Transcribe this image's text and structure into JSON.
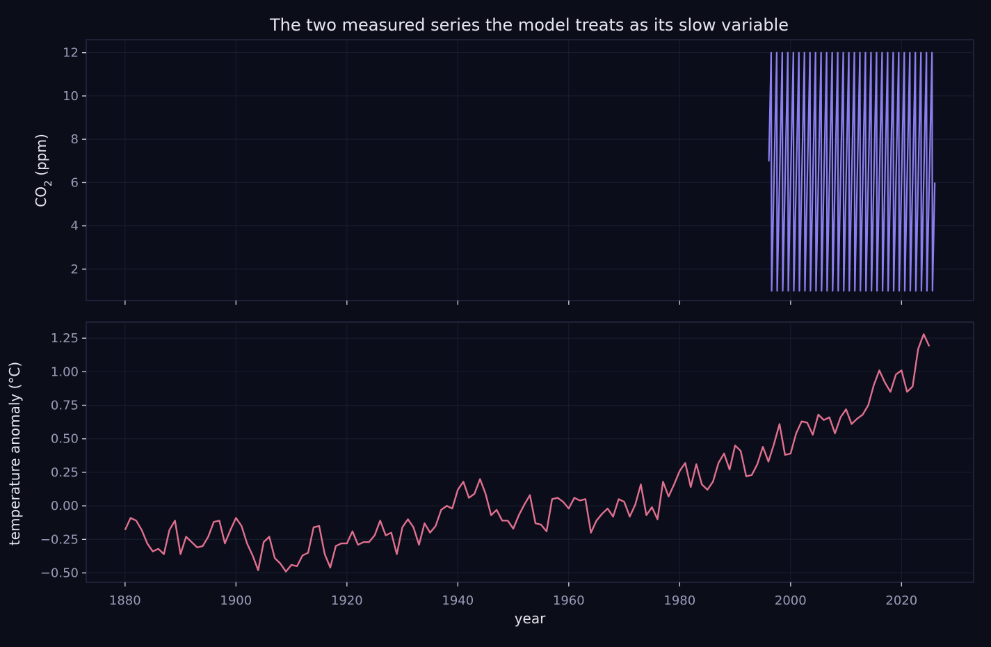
{
  "chart_data": [
    {
      "type": "line",
      "title": "The two measured series the model treats as its slow variable",
      "ylabel_main": "CO",
      "ylabel_sub": "2",
      "ylabel_rest": " (ppm)",
      "xlim": [
        1873,
        2033
      ],
      "ylim": [
        0.55,
        12.6
      ],
      "xticks": [
        1880,
        1900,
        1920,
        1940,
        1960,
        1980,
        2000,
        2020
      ],
      "yticks": [
        2,
        4,
        6,
        8,
        10,
        12
      ],
      "grid": true,
      "color": "#8b7ff0",
      "series": [
        {
          "note": "monthly values cycling 1 to 12 from 1996 to 2026",
          "x_start": 1996.0,
          "x_end": 2026.0,
          "first": [
            7,
            7,
            8,
            9,
            10,
            11,
            12
          ],
          "cycle_min": 1,
          "cycle_max": 12,
          "last": [
            1,
            2,
            3,
            4,
            5,
            6
          ]
        }
      ]
    },
    {
      "type": "line",
      "xlabel": "year",
      "ylabel": "temperature anomaly (°C)",
      "xlim": [
        1873,
        2033
      ],
      "ylim": [
        -0.57,
        1.37
      ],
      "xticks": [
        1880,
        1900,
        1920,
        1940,
        1960,
        1980,
        2000,
        2020
      ],
      "xtick_labels": [
        "1880",
        "1900",
        "1920",
        "1940",
        "1960",
        "1980",
        "2000",
        "2020"
      ],
      "yticks": [
        -0.5,
        -0.25,
        0.0,
        0.25,
        0.5,
        0.75,
        1.0,
        1.25
      ],
      "ytick_labels": [
        "−0.50",
        "−0.25",
        "0.00",
        "0.25",
        "0.50",
        "0.75",
        "1.00",
        "1.25"
      ],
      "grid": true,
      "color": "#e0708f",
      "series": [
        {
          "x_start": 1880,
          "values": [
            -0.18,
            -0.09,
            -0.11,
            -0.18,
            -0.28,
            -0.34,
            -0.32,
            -0.36,
            -0.18,
            -0.11,
            -0.36,
            -0.23,
            -0.27,
            -0.31,
            -0.3,
            -0.23,
            -0.12,
            -0.11,
            -0.28,
            -0.18,
            -0.09,
            -0.15,
            -0.28,
            -0.37,
            -0.48,
            -0.27,
            -0.23,
            -0.39,
            -0.43,
            -0.49,
            -0.44,
            -0.45,
            -0.37,
            -0.35,
            -0.16,
            -0.15,
            -0.36,
            -0.46,
            -0.3,
            -0.28,
            -0.28,
            -0.19,
            -0.29,
            -0.27,
            -0.27,
            -0.22,
            -0.11,
            -0.22,
            -0.2,
            -0.36,
            -0.16,
            -0.1,
            -0.16,
            -0.29,
            -0.13,
            -0.2,
            -0.15,
            -0.03,
            0.0,
            -0.02,
            0.12,
            0.18,
            0.06,
            0.09,
            0.2,
            0.09,
            -0.07,
            -0.03,
            -0.11,
            -0.11,
            -0.17,
            -0.07,
            0.01,
            0.08,
            -0.13,
            -0.14,
            -0.19,
            0.05,
            0.06,
            0.03,
            -0.02,
            0.06,
            0.04,
            0.05,
            -0.2,
            -0.11,
            -0.06,
            -0.02,
            -0.08,
            0.05,
            0.03,
            -0.08,
            0.01,
            0.16,
            -0.07,
            -0.01,
            -0.1,
            0.18,
            0.07,
            0.16,
            0.26,
            0.32,
            0.14,
            0.31,
            0.16,
            0.12,
            0.18,
            0.32,
            0.39,
            0.27,
            0.45,
            0.41,
            0.22,
            0.23,
            0.31,
            0.44,
            0.33,
            0.46,
            0.61,
            0.38,
            0.39,
            0.54,
            0.63,
            0.62,
            0.53,
            0.68,
            0.64,
            0.66,
            0.54,
            0.66,
            0.72,
            0.61,
            0.65,
            0.68,
            0.75,
            0.9,
            1.01,
            0.92,
            0.85,
            0.98,
            1.01,
            0.85,
            0.89,
            1.17,
            1.28,
            1.19
          ]
        }
      ]
    }
  ]
}
